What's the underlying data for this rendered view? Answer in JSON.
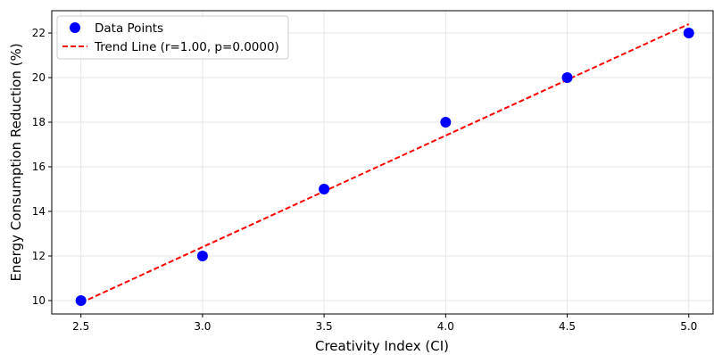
{
  "chart_data": {
    "type": "scatter",
    "xlabel": "Creativity Index (CI)",
    "ylabel": "Energy Consumption Reduction (%)",
    "xlim": [
      2.38,
      5.1
    ],
    "ylim": [
      9.4,
      23.0
    ],
    "x_ticks": [
      "2.5",
      "3.0",
      "3.5",
      "4.0",
      "4.5",
      "5.0"
    ],
    "y_ticks": [
      "10",
      "12",
      "14",
      "16",
      "18",
      "20",
      "22"
    ],
    "grid": true,
    "legend_position": "top-left",
    "series": [
      {
        "name": "Data Points",
        "kind": "scatter",
        "color": "#0000ff",
        "x": [
          2.5,
          3.0,
          3.5,
          4.0,
          4.5,
          5.0
        ],
        "y": [
          10,
          12,
          15,
          18,
          20,
          22
        ]
      },
      {
        "name": "Trend Line (r=1.00, p=0.0000)",
        "kind": "line",
        "style": "dashed",
        "color": "#ff0000",
        "x": [
          2.5,
          5.0
        ],
        "y": [
          9.9,
          22.4
        ]
      }
    ]
  }
}
